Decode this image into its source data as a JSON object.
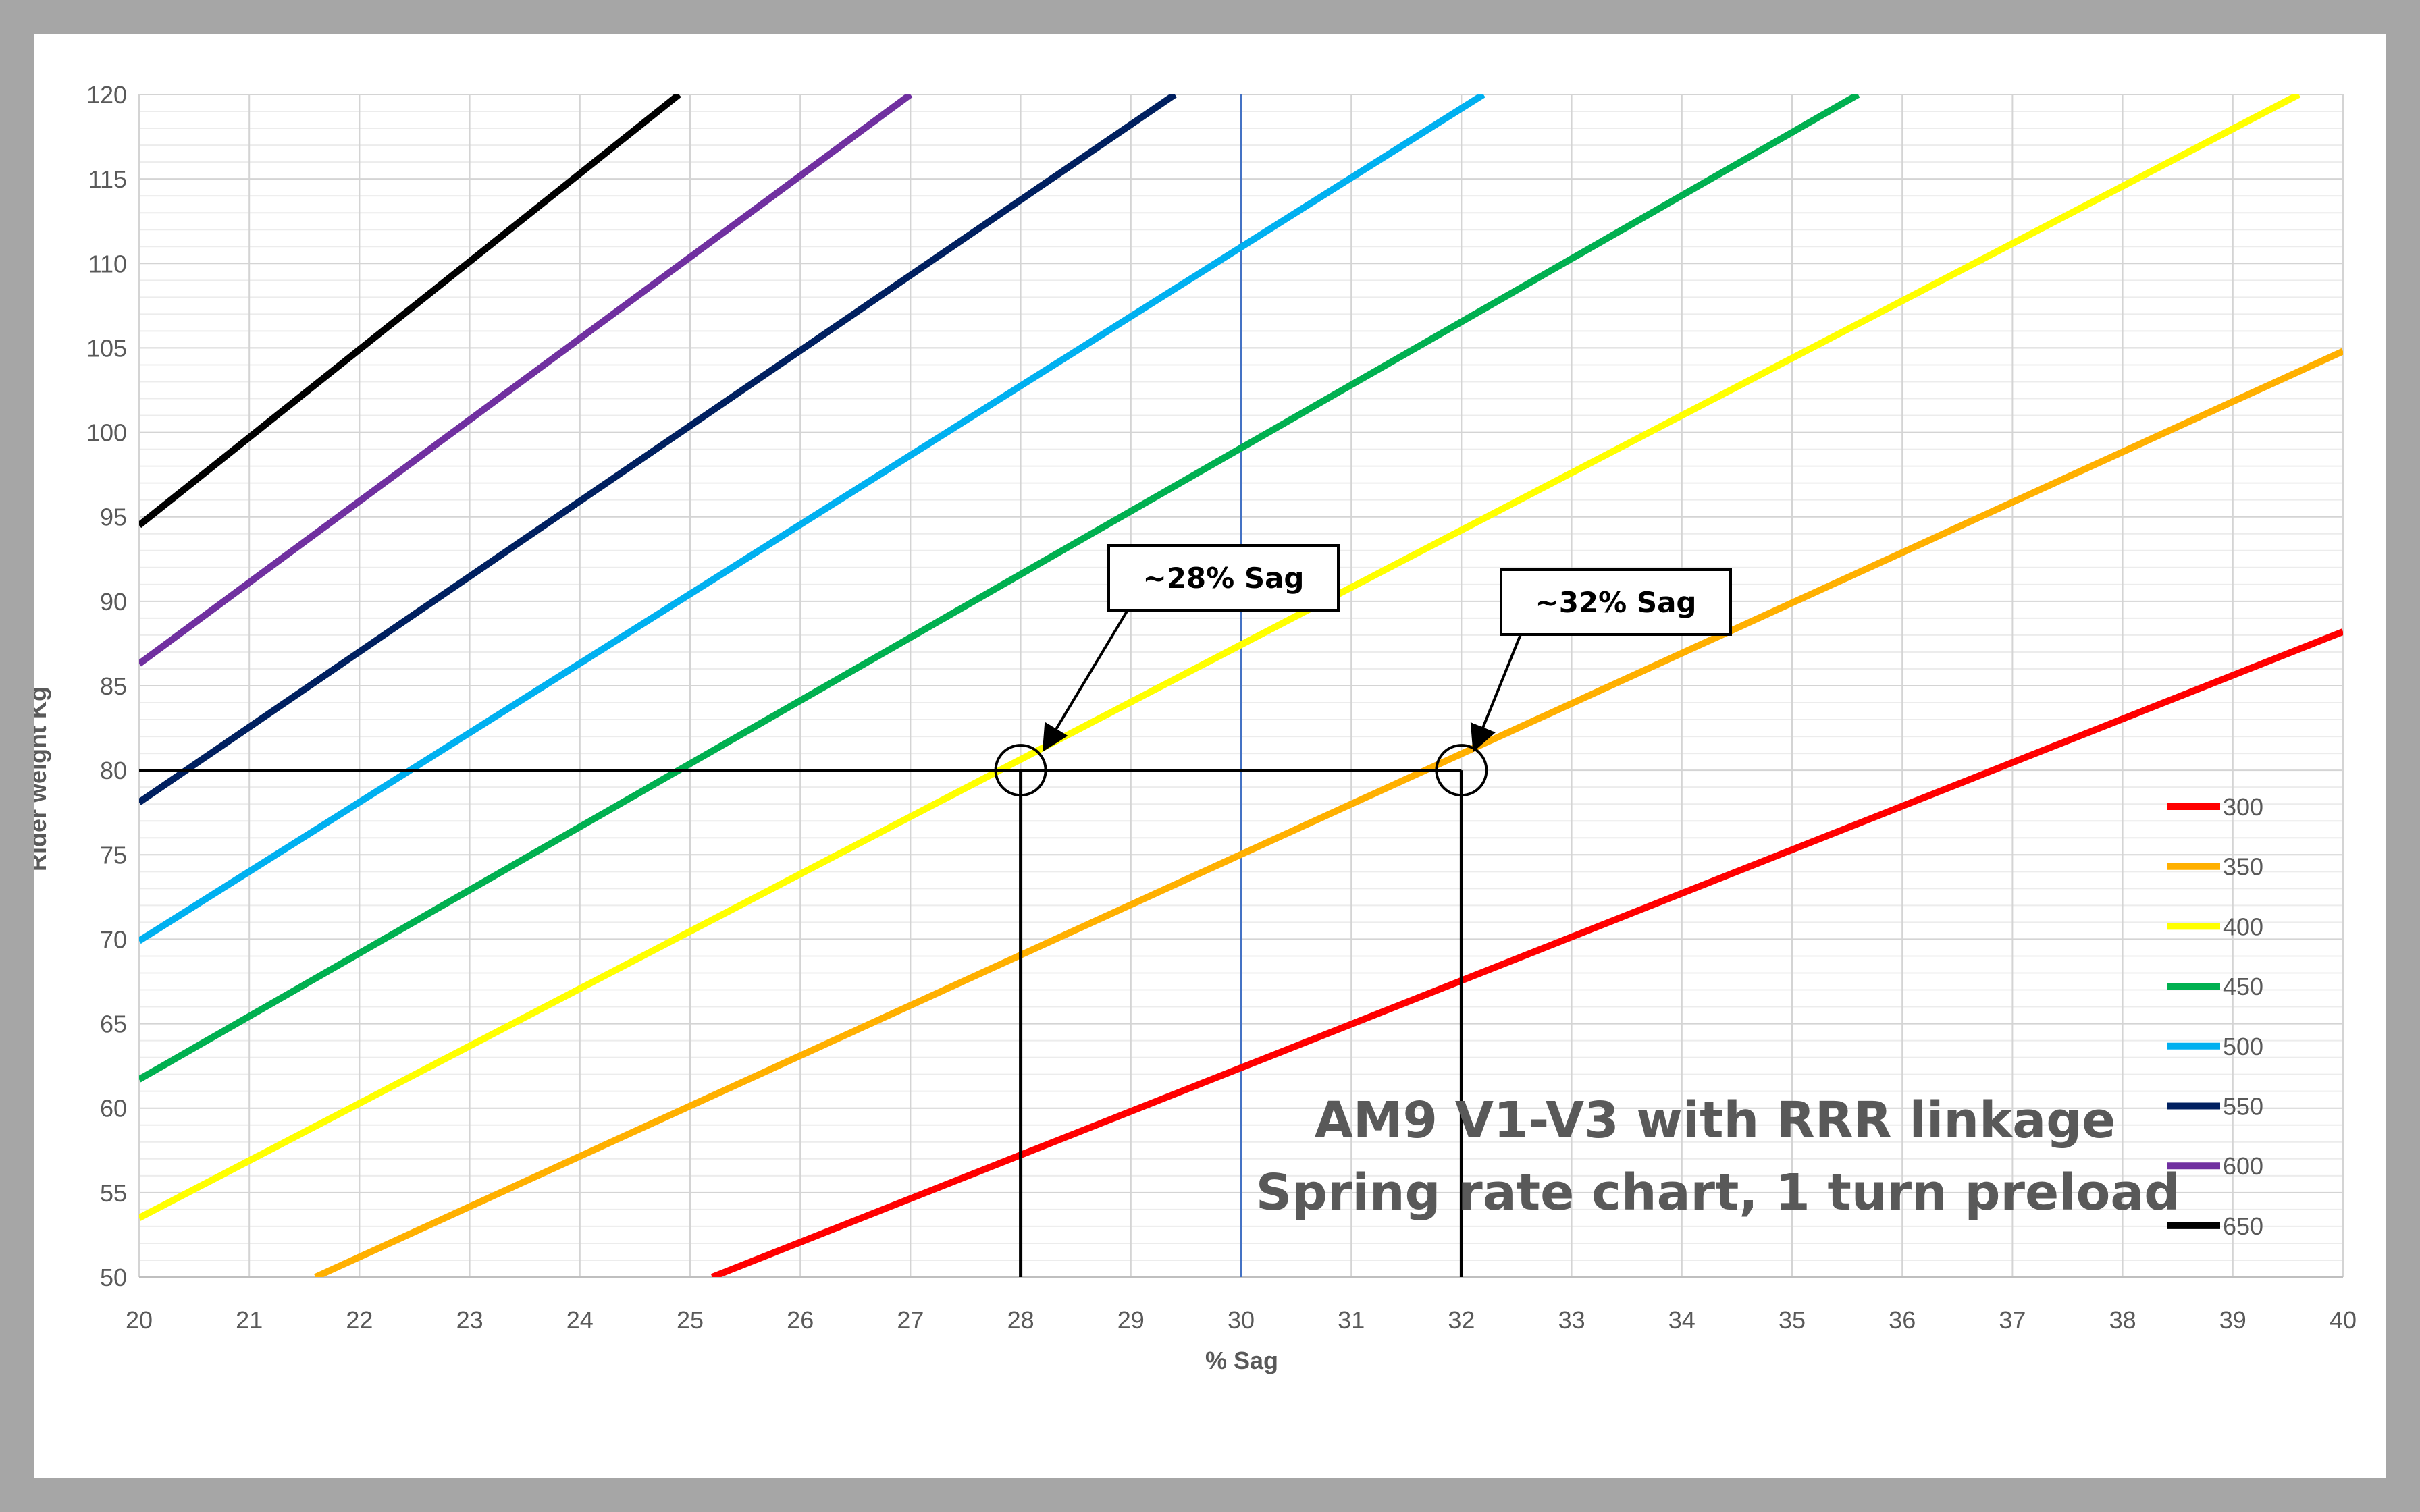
{
  "chart_data": {
    "type": "line",
    "title_lines": [
      "AM9 V1-V3 with RRR linkage",
      "Spring rate chart, 1 turn preload"
    ],
    "xlabel": "% Sag",
    "ylabel": "Rider weight Kg",
    "xlim": [
      20,
      40
    ],
    "ylim": [
      50,
      120
    ],
    "x_ticks": [
      20,
      21,
      22,
      23,
      24,
      25,
      26,
      27,
      28,
      29,
      30,
      31,
      32,
      33,
      34,
      35,
      36,
      37,
      38,
      39,
      40
    ],
    "y_ticks": [
      50,
      55,
      60,
      65,
      70,
      75,
      80,
      85,
      90,
      95,
      100,
      105,
      110,
      115,
      120
    ],
    "grid": true,
    "minor_grid": true,
    "legend_position": "bottom-right",
    "series": [
      {
        "name": "300",
        "color": "#ff0000",
        "x": [
          25.2,
          40
        ],
        "y": [
          50,
          88.2
        ]
      },
      {
        "name": "350",
        "color": "#ffb000",
        "x": [
          21.6,
          40
        ],
        "y": [
          50,
          104.8
        ]
      },
      {
        "name": "400",
        "color": "#ffff00",
        "x": [
          20,
          39.6
        ],
        "y": [
          53.5,
          120
        ]
      },
      {
        "name": "450",
        "color": "#00b050",
        "x": [
          20,
          35.6
        ],
        "y": [
          61.7,
          120
        ]
      },
      {
        "name": "500",
        "color": "#00b0f0",
        "x": [
          20,
          32.2
        ],
        "y": [
          69.9,
          120
        ]
      },
      {
        "name": "550",
        "color": "#002060",
        "x": [
          20,
          29.4
        ],
        "y": [
          78.1,
          120
        ]
      },
      {
        "name": "600",
        "color": "#7030a0",
        "x": [
          20,
          27
        ],
        "y": [
          86.3,
          120
        ]
      },
      {
        "name": "650",
        "color": "#000000",
        "x": [
          20,
          24.9
        ],
        "y": [
          94.5,
          120
        ]
      }
    ],
    "reference_lines": {
      "vertical_blue_x": 30,
      "horizontal_y": 80,
      "vertical_marks_x": [
        28,
        32
      ]
    },
    "annotations": [
      {
        "text": "~28% Sag",
        "x": 28.1,
        "y": 80
      },
      {
        "text": "~32% Sag",
        "x": 32,
        "y": 80
      }
    ]
  }
}
